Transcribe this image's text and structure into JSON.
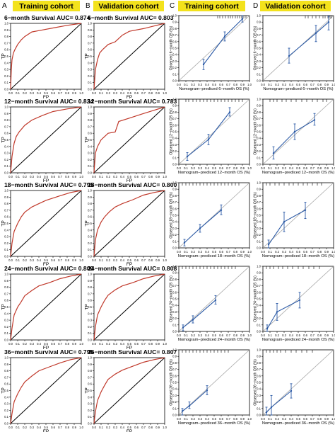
{
  "panel_letters": [
    "A",
    "B",
    "C",
    "D"
  ],
  "headers": [
    "Training cohort",
    "Validation cohort",
    "Training cohort",
    "Validation cohort"
  ],
  "roc_axes": {
    "xlabel": "FP",
    "ylabel": "TP",
    "ticks": [
      "0.0",
      "0.1",
      "0.2",
      "0.3",
      "0.4",
      "0.5",
      "0.6",
      "0.7",
      "0.8",
      "0.9",
      "1.0"
    ]
  },
  "colors": {
    "roc_curve": "#c0392b",
    "diagonal": "#000000",
    "calibration_line": "#2b5aa6",
    "ideal_line": "#aaaaaa",
    "header_bg": "#f3e21c"
  },
  "chart_data": [
    {
      "type": "line",
      "panel": "A",
      "row": 0,
      "title": "6−month Survival AUC= 0.874",
      "xlabel": "FP",
      "ylabel": "TP",
      "xlim": [
        0,
        1
      ],
      "ylim": [
        0,
        1
      ],
      "series": [
        {
          "x": [
            0,
            0.01,
            0.02,
            0.04,
            0.06,
            0.1,
            0.15,
            0.2,
            0.3,
            0.45,
            0.6,
            0.8,
            1
          ],
          "y": [
            0,
            0.3,
            0.45,
            0.55,
            0.6,
            0.68,
            0.75,
            0.8,
            0.87,
            0.9,
            0.93,
            0.97,
            1
          ]
        }
      ]
    },
    {
      "type": "line",
      "panel": "B",
      "row": 0,
      "title": "6−month Survival AUC= 0.803",
      "xlabel": "FP",
      "ylabel": "TP",
      "xlim": [
        0,
        1
      ],
      "ylim": [
        0,
        1
      ],
      "series": [
        {
          "x": [
            0,
            0.02,
            0.05,
            0.08,
            0.12,
            0.2,
            0.3,
            0.4,
            0.5,
            0.7,
            0.85,
            1
          ],
          "y": [
            0,
            0.3,
            0.45,
            0.55,
            0.6,
            0.68,
            0.72,
            0.82,
            0.88,
            0.92,
            0.96,
            1
          ]
        }
      ]
    },
    {
      "type": "line",
      "panel": "A",
      "row": 1,
      "title": "12−month Survival AUC= 0.824",
      "xlabel": "FP",
      "ylabel": "TP",
      "xlim": [
        0,
        1
      ],
      "ylim": [
        0,
        1
      ],
      "series": [
        {
          "x": [
            0,
            0.02,
            0.05,
            0.08,
            0.12,
            0.2,
            0.3,
            0.45,
            0.6,
            0.8,
            1
          ],
          "y": [
            0,
            0.25,
            0.45,
            0.55,
            0.62,
            0.72,
            0.8,
            0.87,
            0.93,
            0.97,
            1
          ]
        }
      ]
    },
    {
      "type": "line",
      "panel": "B",
      "row": 1,
      "title": "12−month Survival AUC= 0.783",
      "xlabel": "FP",
      "ylabel": "TP",
      "xlim": [
        0,
        1
      ],
      "ylim": [
        0,
        1
      ],
      "series": [
        {
          "x": [
            0,
            0.02,
            0.05,
            0.1,
            0.15,
            0.2,
            0.3,
            0.35,
            0.5,
            0.7,
            0.85,
            1
          ],
          "y": [
            0,
            0.3,
            0.4,
            0.5,
            0.55,
            0.6,
            0.62,
            0.78,
            0.83,
            0.9,
            0.95,
            1
          ]
        }
      ]
    },
    {
      "type": "line",
      "panel": "A",
      "row": 2,
      "title": "18−month Survival AUC= 0.795",
      "xlabel": "FP",
      "ylabel": "TP",
      "xlim": [
        0,
        1
      ],
      "ylim": [
        0,
        1
      ],
      "series": [
        {
          "x": [
            0,
            0.02,
            0.05,
            0.1,
            0.15,
            0.2,
            0.3,
            0.4,
            0.5,
            0.7,
            0.85,
            1
          ],
          "y": [
            0,
            0.2,
            0.38,
            0.5,
            0.6,
            0.67,
            0.75,
            0.8,
            0.85,
            0.92,
            0.97,
            1
          ]
        }
      ]
    },
    {
      "type": "line",
      "panel": "B",
      "row": 2,
      "title": "18−month Survival AUC= 0.800",
      "xlabel": "FP",
      "ylabel": "TP",
      "xlim": [
        0,
        1
      ],
      "ylim": [
        0,
        1
      ],
      "series": [
        {
          "x": [
            0,
            0.02,
            0.05,
            0.1,
            0.15,
            0.22,
            0.3,
            0.4,
            0.55,
            0.7,
            0.85,
            1
          ],
          "y": [
            0,
            0.25,
            0.4,
            0.52,
            0.6,
            0.68,
            0.75,
            0.8,
            0.86,
            0.93,
            0.97,
            1
          ]
        }
      ]
    },
    {
      "type": "line",
      "panel": "A",
      "row": 3,
      "title": "24−month Survival AUC= 0.800",
      "xlabel": "FP",
      "ylabel": "TP",
      "xlim": [
        0,
        1
      ],
      "ylim": [
        0,
        1
      ],
      "series": [
        {
          "x": [
            0,
            0.02,
            0.05,
            0.1,
            0.15,
            0.2,
            0.3,
            0.4,
            0.55,
            0.7,
            0.85,
            1
          ],
          "y": [
            0,
            0.18,
            0.38,
            0.5,
            0.58,
            0.67,
            0.75,
            0.82,
            0.87,
            0.93,
            0.97,
            1
          ]
        }
      ]
    },
    {
      "type": "line",
      "panel": "B",
      "row": 3,
      "title": "24−month Survival AUC= 0.808",
      "xlabel": "FP",
      "ylabel": "TP",
      "xlim": [
        0,
        1
      ],
      "ylim": [
        0,
        1
      ],
      "series": [
        {
          "x": [
            0,
            0.02,
            0.05,
            0.1,
            0.15,
            0.2,
            0.3,
            0.4,
            0.55,
            0.7,
            0.85,
            1
          ],
          "y": [
            0,
            0.2,
            0.38,
            0.5,
            0.6,
            0.68,
            0.76,
            0.82,
            0.87,
            0.93,
            0.97,
            1
          ]
        }
      ]
    },
    {
      "type": "line",
      "panel": "A",
      "row": 4,
      "title": "36−month Survival AUC= 0.795",
      "xlabel": "FP",
      "ylabel": "TP",
      "xlim": [
        0,
        1
      ],
      "ylim": [
        0,
        1
      ],
      "series": [
        {
          "x": [
            0,
            0.02,
            0.05,
            0.1,
            0.15,
            0.2,
            0.3,
            0.4,
            0.55,
            0.7,
            0.85,
            1
          ],
          "y": [
            0,
            0.15,
            0.33,
            0.45,
            0.55,
            0.63,
            0.72,
            0.8,
            0.86,
            0.92,
            0.97,
            1
          ]
        }
      ]
    },
    {
      "type": "line",
      "panel": "B",
      "row": 4,
      "title": "36−month Survival AUC= 0.807",
      "xlabel": "FP",
      "ylabel": "TP",
      "xlim": [
        0,
        1
      ],
      "ylim": [
        0,
        1
      ],
      "series": [
        {
          "x": [
            0,
            0.02,
            0.05,
            0.1,
            0.15,
            0.2,
            0.3,
            0.4,
            0.55,
            0.7,
            0.85,
            1
          ],
          "y": [
            0,
            0.18,
            0.35,
            0.48,
            0.58,
            0.67,
            0.75,
            0.81,
            0.87,
            0.93,
            0.97,
            1
          ]
        }
      ]
    },
    {
      "type": "line",
      "panel": "C",
      "row": 0,
      "xlabel": "Nomogram−prediced 6−month OS (%)",
      "ylabel": "Observed 6−month OS (%)",
      "xlim": [
        0,
        1
      ],
      "ylim": [
        0,
        1
      ],
      "points": [
        {
          "x": 0.35,
          "y": 0.25,
          "lo": 0.17,
          "hi": 0.33
        },
        {
          "x": 0.65,
          "y": 0.68,
          "lo": 0.61,
          "hi": 0.75
        },
        {
          "x": 0.9,
          "y": 0.95,
          "lo": 0.9,
          "hi": 1.0
        }
      ],
      "rug_x": [
        0.55,
        0.58,
        0.62,
        0.66,
        0.7,
        0.73,
        0.76,
        0.8,
        0.83,
        0.86,
        0.89,
        0.92,
        0.95
      ]
    },
    {
      "type": "line",
      "panel": "D",
      "row": 0,
      "xlabel": "Nomogram−prediced 6−month OS (%)",
      "ylabel": "Observed 6−month OS (%)",
      "xlim": [
        0,
        1
      ],
      "ylim": [
        0,
        1
      ],
      "points": [
        {
          "x": 0.37,
          "y": 0.38,
          "lo": 0.27,
          "hi": 0.5
        },
        {
          "x": 0.75,
          "y": 0.73,
          "lo": 0.6,
          "hi": 0.85
        },
        {
          "x": 0.93,
          "y": 0.9,
          "lo": 0.78,
          "hi": 0.99
        }
      ],
      "rug_x": [
        0.6,
        0.64,
        0.7,
        0.75,
        0.8,
        0.85,
        0.88,
        0.92,
        0.95,
        0.97
      ]
    },
    {
      "type": "line",
      "panel": "C",
      "row": 1,
      "xlabel": "Nomogram−prediced 12−month OS (%)",
      "ylabel": "Observed 12−month OS (%)",
      "xlim": [
        0,
        1
      ],
      "ylim": [
        0,
        1
      ],
      "points": [
        {
          "x": 0.12,
          "y": 0.12,
          "lo": 0.06,
          "hi": 0.18
        },
        {
          "x": 0.42,
          "y": 0.38,
          "lo": 0.3,
          "hi": 0.46
        },
        {
          "x": 0.72,
          "y": 0.8,
          "lo": 0.74,
          "hi": 0.87
        }
      ],
      "rug_x": [
        0.1,
        0.14,
        0.2,
        0.25,
        0.3,
        0.35,
        0.4,
        0.45,
        0.5,
        0.55,
        0.6,
        0.65,
        0.7,
        0.75,
        0.8,
        0.85,
        0.9
      ]
    },
    {
      "type": "line",
      "panel": "D",
      "row": 1,
      "xlabel": "Nomogram−prediced 12−month OS (%)",
      "ylabel": "Observed 12−month OS (%)",
      "xlim": [
        0,
        1
      ],
      "ylim": [
        0,
        1
      ],
      "points": [
        {
          "x": 0.15,
          "y": 0.17,
          "lo": 0.08,
          "hi": 0.27
        },
        {
          "x": 0.45,
          "y": 0.5,
          "lo": 0.38,
          "hi": 0.62
        },
        {
          "x": 0.73,
          "y": 0.68,
          "lo": 0.6,
          "hi": 0.78
        }
      ],
      "rug_x": [
        0.1,
        0.15,
        0.2,
        0.27,
        0.33,
        0.4,
        0.47,
        0.55,
        0.62,
        0.7,
        0.77,
        0.85,
        0.9
      ]
    },
    {
      "type": "line",
      "panel": "C",
      "row": 2,
      "xlabel": "Nomogram−prediced 18−month OS (%)",
      "ylabel": "Observed 18−month OS (%)",
      "xlim": [
        0,
        1
      ],
      "ylim": [
        0,
        1
      ],
      "points": [
        {
          "x": 0.08,
          "y": 0.08,
          "lo": 0.03,
          "hi": 0.13
        },
        {
          "x": 0.3,
          "y": 0.3,
          "lo": 0.24,
          "hi": 0.36
        },
        {
          "x": 0.6,
          "y": 0.58,
          "lo": 0.51,
          "hi": 0.66
        }
      ],
      "rug_x": [
        0.05,
        0.1,
        0.15,
        0.2,
        0.25,
        0.3,
        0.35,
        0.4,
        0.45,
        0.5,
        0.55,
        0.6,
        0.65,
        0.7,
        0.75,
        0.8,
        0.85
      ]
    },
    {
      "type": "line",
      "panel": "D",
      "row": 2,
      "xlabel": "Nomogram−prediced 18−month OS (%)",
      "ylabel": "Observed 18−month OS (%)",
      "xlim": [
        0,
        1
      ],
      "ylim": [
        0,
        1
      ],
      "points": [
        {
          "x": 0.08,
          "y": 0.05,
          "lo": 0.0,
          "hi": 0.12
        },
        {
          "x": 0.3,
          "y": 0.4,
          "lo": 0.25,
          "hi": 0.55
        },
        {
          "x": 0.6,
          "y": 0.58,
          "lo": 0.45,
          "hi": 0.7
        }
      ],
      "rug_x": [
        0.05,
        0.1,
        0.17,
        0.23,
        0.3,
        0.37,
        0.43,
        0.5,
        0.57,
        0.63,
        0.7,
        0.77,
        0.83
      ]
    },
    {
      "type": "line",
      "panel": "C",
      "row": 3,
      "xlabel": "Nomogram−prediced 24−month OS (%)",
      "ylabel": "Observed 24−month OS (%)",
      "xlim": [
        0,
        1
      ],
      "ylim": [
        0,
        1
      ],
      "points": [
        {
          "x": 0.06,
          "y": 0.06,
          "lo": 0.01,
          "hi": 0.1
        },
        {
          "x": 0.2,
          "y": 0.18,
          "lo": 0.13,
          "hi": 0.24
        },
        {
          "x": 0.52,
          "y": 0.48,
          "lo": 0.42,
          "hi": 0.55
        }
      ],
      "rug_x": [
        0.05,
        0.1,
        0.15,
        0.2,
        0.25,
        0.3,
        0.35,
        0.4,
        0.45,
        0.5,
        0.55,
        0.6,
        0.65,
        0.7,
        0.75,
        0.8
      ]
    },
    {
      "type": "line",
      "panel": "D",
      "row": 3,
      "xlabel": "Nomogram−prediced 24−month OS (%)",
      "ylabel": "Observed 24−month OS (%)",
      "xlim": [
        0,
        1
      ],
      "ylim": [
        0,
        1
      ],
      "points": [
        {
          "x": 0.06,
          "y": 0.04,
          "lo": 0.0,
          "hi": 0.1
        },
        {
          "x": 0.2,
          "y": 0.3,
          "lo": 0.17,
          "hi": 0.43
        },
        {
          "x": 0.52,
          "y": 0.48,
          "lo": 0.36,
          "hi": 0.6
        }
      ],
      "rug_x": [
        0.05,
        0.1,
        0.15,
        0.22,
        0.28,
        0.35,
        0.42,
        0.5,
        0.57,
        0.65,
        0.72,
        0.8
      ]
    },
    {
      "type": "line",
      "panel": "C",
      "row": 4,
      "xlabel": "Nomogram−prediced 36−month OS (%)",
      "ylabel": "Observed 36−month OS (%)",
      "xlim": [
        0,
        1
      ],
      "ylim": [
        0,
        1
      ],
      "points": [
        {
          "x": 0.05,
          "y": 0.06,
          "lo": 0.0,
          "hi": 0.1
        },
        {
          "x": 0.15,
          "y": 0.14,
          "lo": 0.1,
          "hi": 0.2
        },
        {
          "x": 0.4,
          "y": 0.38,
          "lo": 0.31,
          "hi": 0.45
        }
      ],
      "rug_x": [
        0.05,
        0.1,
        0.15,
        0.2,
        0.25,
        0.3,
        0.35,
        0.4,
        0.45,
        0.5,
        0.55,
        0.6,
        0.65,
        0.7
      ]
    },
    {
      "type": "line",
      "panel": "D",
      "row": 4,
      "xlabel": "Nomogram−prediced 36−month OS (%)",
      "ylabel": "Observed 36−month OS (%)",
      "xlim": [
        0,
        1
      ],
      "ylim": [
        0,
        1
      ],
      "points": [
        {
          "x": 0.05,
          "y": 0.04,
          "lo": 0.0,
          "hi": 0.12
        },
        {
          "x": 0.12,
          "y": 0.12,
          "lo": 0.0,
          "hi": 0.3
        },
        {
          "x": 0.4,
          "y": 0.37,
          "lo": 0.26,
          "hi": 0.48
        }
      ],
      "rug_x": [
        0.05,
        0.1,
        0.15,
        0.2,
        0.25,
        0.32,
        0.4,
        0.47,
        0.55,
        0.62,
        0.7
      ]
    }
  ]
}
